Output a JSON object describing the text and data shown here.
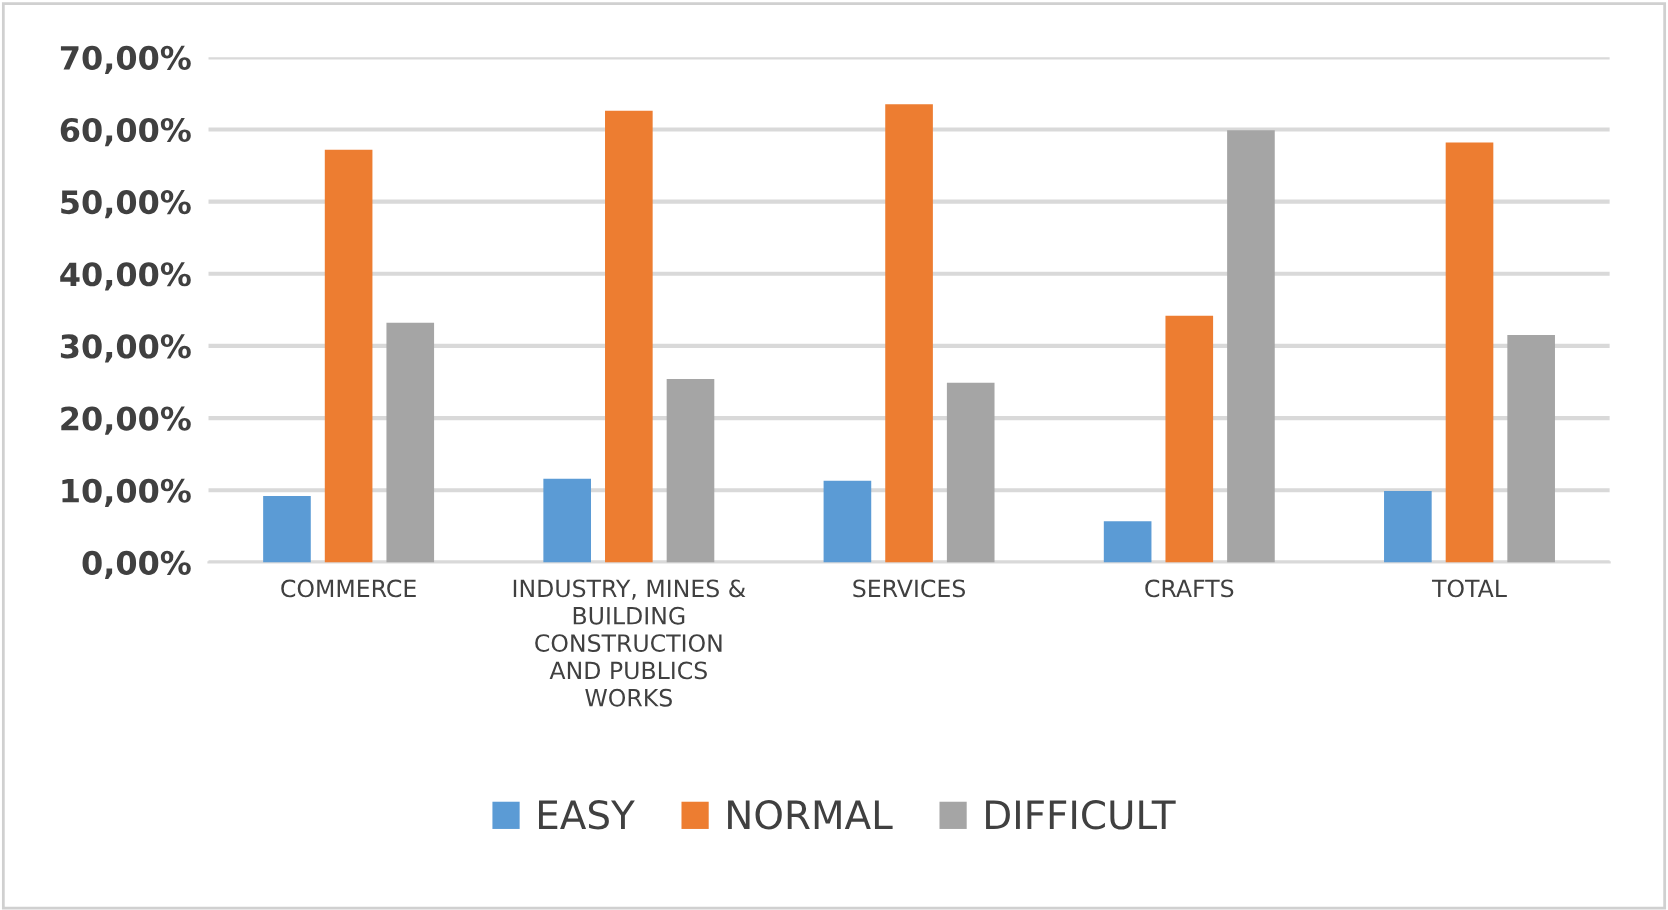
{
  "chart_data": {
    "type": "bar",
    "categories": [
      "COMMERCE",
      "INDUSTRY, MINES &\nBUILDING\nCONSTRUCTION\nAND PUBLICS\nWORKS",
      "SERVICES",
      "CRAFTS",
      "TOTAL"
    ],
    "series": [
      {
        "name": "EASY",
        "color": "#5b9bd5",
        "values": [
          9.2,
          11.6,
          11.3,
          5.7,
          9.9
        ]
      },
      {
        "name": "NORMAL",
        "color": "#ed7d31",
        "values": [
          57.2,
          62.6,
          63.5,
          34.2,
          58.2
        ]
      },
      {
        "name": "DIFFICULT",
        "color": "#a5a5a5",
        "values": [
          33.2,
          25.4,
          24.9,
          59.9,
          31.5
        ]
      }
    ],
    "ylim": [
      0,
      70
    ],
    "yticks": [
      {
        "value": 0,
        "label": "0,00%"
      },
      {
        "value": 10,
        "label": "10,00%"
      },
      {
        "value": 20,
        "label": "20,00%"
      },
      {
        "value": 30,
        "label": "30,00%"
      },
      {
        "value": 40,
        "label": "40,00%"
      },
      {
        "value": 50,
        "label": "50,00%"
      },
      {
        "value": 60,
        "label": "60,00%"
      },
      {
        "value": 70,
        "label": "70,00%"
      }
    ],
    "grid": "y",
    "legend": "bottom"
  }
}
